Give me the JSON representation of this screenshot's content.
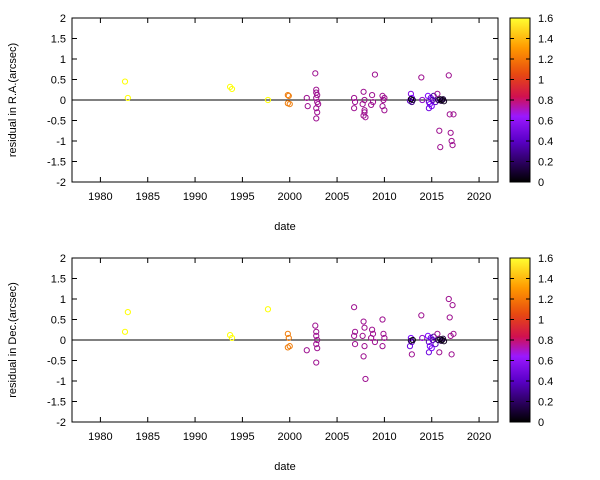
{
  "palette_stops": [
    "#000000",
    "#7a00ff",
    "#c02020",
    "#ff9900",
    "#ffff00"
  ],
  "chart_data": [
    {
      "type": "scatter",
      "title": "",
      "xlabel": "date",
      "ylabel": "residual in R.A.(arcsec)",
      "xlim": [
        1977,
        2022
      ],
      "ylim": [
        -2,
        2
      ],
      "xticks": [
        1980,
        1985,
        1990,
        1995,
        2000,
        2005,
        2010,
        2015,
        2020
      ],
      "yticks": [
        -2,
        -1.5,
        -1,
        -0.5,
        0,
        0.5,
        1,
        1.5,
        2
      ],
      "zero_line": true,
      "grid": false,
      "marker": "open-circle",
      "colorbar": {
        "range": [
          0,
          1.6
        ],
        "ticks": [
          0,
          0.2,
          0.4,
          0.6,
          0.8,
          1,
          1.2,
          1.4,
          1.6
        ]
      },
      "series": [
        {
          "points": [
            [
              1982.6,
              0.45,
              1.6
            ],
            [
              1982.9,
              0.05,
              1.6
            ],
            [
              1993.7,
              0.32,
              1.6
            ],
            [
              1993.9,
              0.27,
              1.6
            ],
            [
              1997.7,
              0.0,
              1.6
            ],
            [
              1999.8,
              0.12,
              1.1
            ],
            [
              1999.9,
              0.1,
              1.1
            ],
            [
              2000.0,
              -0.1,
              1.1
            ],
            [
              1999.8,
              -0.08,
              1.1
            ],
            [
              2001.8,
              0.05,
              0.6
            ],
            [
              2001.9,
              -0.15,
              0.6
            ],
            [
              2002.7,
              0.65,
              0.6
            ],
            [
              2002.8,
              0.25,
              0.6
            ],
            [
              2002.8,
              0.18,
              0.6
            ],
            [
              2002.9,
              0.12,
              0.6
            ],
            [
              2002.8,
              0.05,
              0.6
            ],
            [
              2002.9,
              -0.05,
              0.6
            ],
            [
              2002.8,
              -0.2,
              0.6
            ],
            [
              2002.9,
              -0.3,
              0.6
            ],
            [
              2002.8,
              -0.45,
              0.6
            ],
            [
              2003.0,
              -0.1,
              0.6
            ],
            [
              2006.8,
              0.05,
              0.6
            ],
            [
              2006.9,
              -0.05,
              0.6
            ],
            [
              2006.8,
              -0.2,
              0.6
            ],
            [
              2007.8,
              0.2,
              0.6
            ],
            [
              2007.9,
              0.0,
              0.6
            ],
            [
              2007.7,
              -0.1,
              0.6
            ],
            [
              2007.9,
              -0.25,
              0.6
            ],
            [
              2007.8,
              -0.38,
              0.6
            ],
            [
              2008.0,
              -0.42,
              0.6
            ],
            [
              2007.9,
              -0.3,
              0.6
            ],
            [
              2008.7,
              0.12,
              0.6
            ],
            [
              2008.8,
              -0.05,
              0.6
            ],
            [
              2008.6,
              -0.12,
              0.6
            ],
            [
              2009.0,
              0.62,
              0.6
            ],
            [
              2009.8,
              0.1,
              0.6
            ],
            [
              2009.9,
              0.0,
              0.6
            ],
            [
              2009.8,
              -0.15,
              0.6
            ],
            [
              2010.0,
              -0.25,
              0.6
            ],
            [
              2010.0,
              0.05,
              0.6
            ],
            [
              2012.8,
              0.15,
              0.45
            ],
            [
              2012.9,
              0.05,
              0.4
            ],
            [
              2012.7,
              -0.02,
              0.3
            ],
            [
              2012.9,
              -0.05,
              0.2
            ],
            [
              2013.0,
              0.0,
              0.1
            ],
            [
              2012.8,
              0.02,
              0.0
            ],
            [
              2013.9,
              0.55,
              0.6
            ],
            [
              2014.0,
              0.0,
              0.5
            ],
            [
              2014.6,
              0.1,
              0.4
            ],
            [
              2014.7,
              -0.05,
              0.3
            ],
            [
              2014.8,
              -0.1,
              0.4
            ],
            [
              2014.9,
              0.05,
              0.35
            ],
            [
              2015.0,
              -0.15,
              0.4
            ],
            [
              2015.1,
              0.0,
              0.3
            ],
            [
              2014.7,
              -0.2,
              0.35
            ],
            [
              2015.2,
              0.1,
              0.25
            ],
            [
              2015.4,
              -0.05,
              0.3
            ],
            [
              2015.6,
              0.15,
              0.6
            ],
            [
              2015.8,
              -0.75,
              0.6
            ],
            [
              2015.9,
              -1.15,
              0.6
            ],
            [
              2015.7,
              0.0,
              0.1
            ],
            [
              2015.9,
              0.02,
              0.05
            ],
            [
              2016.0,
              -0.02,
              0.1
            ],
            [
              2016.1,
              0.0,
              0.0
            ],
            [
              2016.2,
              0.02,
              0.1
            ],
            [
              2016.3,
              -0.03,
              0.05
            ],
            [
              2016.8,
              0.6,
              0.6
            ],
            [
              2016.9,
              -0.35,
              0.6
            ],
            [
              2017.0,
              -0.8,
              0.6
            ],
            [
              2017.1,
              -1.0,
              0.6
            ],
            [
              2017.2,
              -1.1,
              0.6
            ],
            [
              2017.3,
              -0.35,
              0.6
            ]
          ]
        }
      ]
    },
    {
      "type": "scatter",
      "title": "",
      "xlabel": "date",
      "ylabel": "residual in Dec.(arcsec)",
      "xlim": [
        1977,
        2022
      ],
      "ylim": [
        -2,
        2
      ],
      "xticks": [
        1980,
        1985,
        1990,
        1995,
        2000,
        2005,
        2010,
        2015,
        2020
      ],
      "yticks": [
        -2,
        -1.5,
        -1,
        -0.5,
        0,
        0.5,
        1,
        1.5,
        2
      ],
      "zero_line": true,
      "grid": false,
      "marker": "open-circle",
      "colorbar": {
        "range": [
          0,
          1.6
        ],
        "ticks": [
          0,
          0.2,
          0.4,
          0.6,
          0.8,
          1,
          1.2,
          1.4,
          1.6
        ]
      },
      "series": [
        {
          "points": [
            [
              1982.6,
              0.2,
              1.6
            ],
            [
              1982.9,
              0.68,
              1.6
            ],
            [
              1993.7,
              0.12,
              1.6
            ],
            [
              1993.9,
              0.05,
              1.6
            ],
            [
              1997.7,
              0.75,
              1.6
            ],
            [
              1999.8,
              0.15,
              1.1
            ],
            [
              1999.9,
              0.05,
              1.1
            ],
            [
              2000.0,
              -0.15,
              1.1
            ],
            [
              1999.8,
              -0.18,
              1.1
            ],
            [
              2001.8,
              -0.25,
              0.6
            ],
            [
              2002.7,
              0.35,
              0.6
            ],
            [
              2002.8,
              0.2,
              0.6
            ],
            [
              2002.8,
              0.1,
              0.6
            ],
            [
              2002.9,
              0.0,
              0.6
            ],
            [
              2002.8,
              -0.1,
              0.6
            ],
            [
              2002.9,
              -0.2,
              0.6
            ],
            [
              2002.8,
              -0.55,
              0.6
            ],
            [
              2006.8,
              0.8,
              0.6
            ],
            [
              2006.9,
              0.2,
              0.6
            ],
            [
              2006.8,
              0.1,
              0.6
            ],
            [
              2006.9,
              -0.1,
              0.6
            ],
            [
              2007.8,
              0.45,
              0.6
            ],
            [
              2007.9,
              0.3,
              0.6
            ],
            [
              2007.7,
              0.1,
              0.6
            ],
            [
              2007.9,
              -0.15,
              0.6
            ],
            [
              2007.8,
              -0.4,
              0.6
            ],
            [
              2008.0,
              -0.95,
              0.6
            ],
            [
              2008.7,
              0.25,
              0.6
            ],
            [
              2008.8,
              0.15,
              0.6
            ],
            [
              2008.6,
              0.05,
              0.6
            ],
            [
              2009.0,
              -0.05,
              0.6
            ],
            [
              2009.8,
              0.5,
              0.6
            ],
            [
              2009.9,
              0.15,
              0.6
            ],
            [
              2009.8,
              -0.15,
              0.6
            ],
            [
              2010.0,
              0.05,
              0.6
            ],
            [
              2012.8,
              0.05,
              0.4
            ],
            [
              2012.9,
              -0.05,
              0.3
            ],
            [
              2012.7,
              -0.15,
              0.35
            ],
            [
              2012.9,
              -0.35,
              0.6
            ],
            [
              2013.0,
              0.0,
              0.0
            ],
            [
              2012.8,
              -0.02,
              0.1
            ],
            [
              2013.9,
              0.6,
              0.6
            ],
            [
              2014.0,
              0.05,
              0.5
            ],
            [
              2014.6,
              0.1,
              0.4
            ],
            [
              2014.7,
              -0.05,
              0.3
            ],
            [
              2014.8,
              -0.15,
              0.4
            ],
            [
              2014.9,
              0.05,
              0.35
            ],
            [
              2015.0,
              -0.2,
              0.4
            ],
            [
              2015.1,
              0.0,
              0.3
            ],
            [
              2014.7,
              -0.3,
              0.35
            ],
            [
              2015.2,
              0.08,
              0.25
            ],
            [
              2015.4,
              -0.1,
              0.3
            ],
            [
              2015.6,
              0.15,
              0.6
            ],
            [
              2015.8,
              -0.3,
              0.6
            ],
            [
              2015.7,
              0.0,
              0.1
            ],
            [
              2015.9,
              0.02,
              0.05
            ],
            [
              2016.0,
              -0.02,
              0.1
            ],
            [
              2016.1,
              0.0,
              0.0
            ],
            [
              2016.2,
              0.03,
              0.1
            ],
            [
              2016.3,
              -0.03,
              0.05
            ],
            [
              2016.8,
              1.0,
              0.6
            ],
            [
              2016.9,
              0.55,
              0.6
            ],
            [
              2017.0,
              0.1,
              0.6
            ],
            [
              2017.1,
              -0.35,
              0.6
            ],
            [
              2017.2,
              0.85,
              0.6
            ],
            [
              2017.3,
              0.15,
              0.6
            ]
          ]
        }
      ]
    }
  ]
}
